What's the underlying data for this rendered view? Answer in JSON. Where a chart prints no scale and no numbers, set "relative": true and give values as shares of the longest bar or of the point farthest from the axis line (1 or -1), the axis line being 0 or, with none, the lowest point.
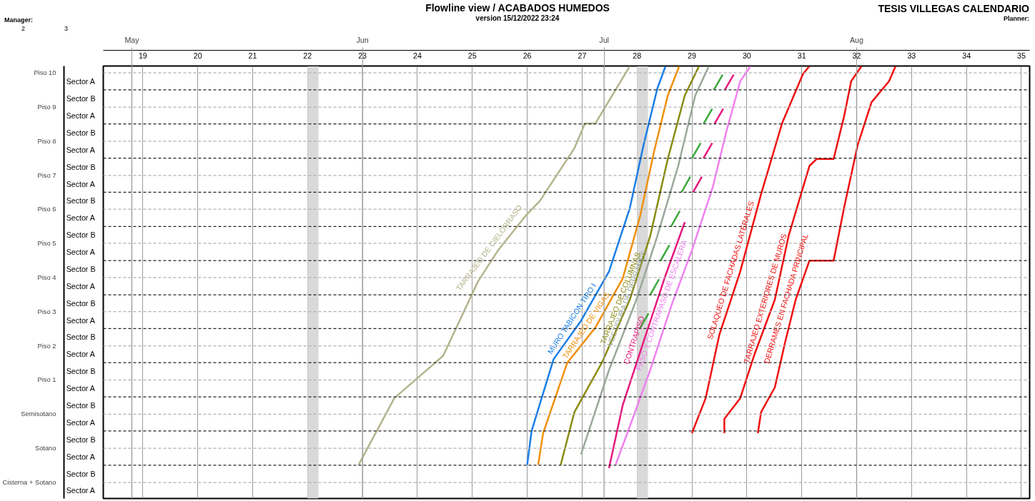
{
  "chart_data": {
    "type": "line",
    "title": "Flowline view / ACABADOS HUMEDOS",
    "subtitle": "version 15/12/2022 23:24",
    "relative": true,
    "xlim": [
      18.28,
      35.15
    ],
    "xticks": [
      19,
      20,
      21,
      22,
      23,
      24,
      25,
      26,
      27,
      28,
      29,
      30,
      31,
      32,
      33,
      34,
      35
    ],
    "y_categories": [
      "Sector A",
      "Sector B",
      "Sector A",
      "Sector B",
      "Sector A",
      "Sector B",
      "Sector A",
      "Sector B",
      "Sector A",
      "Sector B",
      "Sector A",
      "Sector B",
      "Sector A",
      "Sector B",
      "Sector A",
      "Sector B",
      "Sector A",
      "Sector B",
      "Sector A",
      "Sector B",
      "Sector A",
      "Sector B",
      "Sector A",
      "Sector B",
      "Sector A"
    ],
    "grid": "x",
    "legend": false,
    "line_style": "solid",
    "series": [
      {
        "name": "TARRAJEO DE CIELORRASO",
        "color": "#b4b48c",
        "x": [
          22.93,
          23.58,
          24.47,
          25.1,
          25.47,
          25.98,
          26.23,
          26.86,
          27.05,
          27.24,
          27.87
        ],
        "values": [
          0.078,
          0.232,
          0.33,
          0.501,
          0.574,
          0.655,
          0.688,
          0.81,
          0.867,
          0.867,
          1.0
        ]
      },
      {
        "name": "MURO TABICON TIPO I",
        "color": "#1a7ee6",
        "x": [
          26.0,
          26.08,
          26.48,
          26.98,
          27.49,
          27.87,
          28.12,
          28.37,
          28.52
        ],
        "values": [
          0.078,
          0.156,
          0.322,
          0.411,
          0.525,
          0.672,
          0.818,
          0.948,
          1.0
        ]
      },
      {
        "name": "TARRAJEO DE VIGAS",
        "color": "#f0900a",
        "x": [
          26.2,
          26.29,
          26.73,
          27.24,
          27.74,
          28.06,
          28.31,
          28.56,
          28.77
        ],
        "values": [
          0.078,
          0.151,
          0.314,
          0.395,
          0.509,
          0.655,
          0.802,
          0.932,
          1.0
        ]
      },
      {
        "name": "TARRAJEO DE COLUMNAS",
        "color": "#8a8a10",
        "x": [
          26.61,
          26.86,
          27.36,
          27.87,
          28.24,
          28.56,
          28.87,
          29.13
        ],
        "values": [
          0.078,
          0.2,
          0.314,
          0.46,
          0.607,
          0.785,
          0.932,
          1.0
        ]
      },
      {
        "name": "VESTIDURA DE DERRAMES",
        "color": "#9aa89a",
        "x": [
          26.98,
          27.49,
          27.99,
          28.37,
          28.75,
          29.06,
          29.31
        ],
        "values": [
          0.102,
          0.297,
          0.46,
          0.607,
          0.769,
          0.932,
          1.0
        ]
      },
      {
        "name": "CONTRAPISO",
        "color": "#e8187e",
        "x": [
          27.49,
          27.74,
          28.12,
          28.5,
          28.87
        ],
        "values": [
          0.07,
          0.216,
          0.363,
          0.509,
          0.639
        ]
      },
      {
        "name": "PASO Y CONTRAPASO DE ESCALERA",
        "color": "#f080f0",
        "x": [
          27.61,
          27.87,
          28.24,
          28.62,
          29.0,
          29.38,
          29.63,
          29.88,
          30.07
        ],
        "values": [
          0.078,
          0.167,
          0.297,
          0.444,
          0.574,
          0.72,
          0.85,
          0.965,
          1.0
        ]
      },
      {
        "name": "SOLAQUEO DE FACHADAS LATERALES",
        "color": "#f01010",
        "x": [
          29.0,
          29.25,
          29.5,
          29.88,
          30.26,
          30.64,
          31.02,
          31.14
        ],
        "values": [
          0.151,
          0.232,
          0.379,
          0.525,
          0.704,
          0.867,
          0.981,
          1.0
        ]
      },
      {
        "name": "TARRAJEO EXTERIORES DE MUROS",
        "color": "#f01010",
        "x": [
          29.59,
          29.59,
          29.88,
          30.13,
          30.51,
          30.76,
          31.14,
          31.27,
          31.58,
          31.77,
          31.9,
          32.09
        ],
        "values": [
          0.151,
          0.184,
          0.232,
          0.33,
          0.46,
          0.607,
          0.769,
          0.785,
          0.785,
          0.883,
          0.965,
          1.0
        ]
      },
      {
        "name": "DERRAMES EN FACHADA PRINCIPAL",
        "color": "#f01010",
        "x": [
          30.2,
          30.26,
          30.51,
          30.7,
          30.89,
          31.14,
          31.58,
          31.77,
          32.02,
          32.27,
          32.59,
          32.71
        ],
        "values": [
          0.151,
          0.2,
          0.257,
          0.363,
          0.46,
          0.55,
          0.55,
          0.672,
          0.818,
          0.916,
          0.965,
          1.0
        ]
      },
      {
        "color": "#3aa83a",
        "x": [
          28.05,
          28.21,
          28.225,
          28.24,
          28.4,
          28.415,
          28.43,
          28.59,
          28.605,
          28.62,
          28.78,
          28.795,
          28.81,
          28.97,
          28.985,
          29.0,
          29.16,
          29.185,
          29.21,
          29.37,
          29.385,
          29.4,
          29.56
        ],
        "values": [
          0.393,
          0.428,
          null,
          0.471,
          0.507,
          null,
          0.55,
          0.586,
          null,
          0.629,
          0.665,
          null,
          0.708,
          0.744,
          null,
          0.787,
          0.822,
          null,
          0.866,
          0.901,
          null,
          0.945,
          0.98
        ]
      },
      {
        "color": "#e8187e",
        "x": [
          29.02,
          29.18,
          29.195,
          29.21,
          29.37,
          29.39,
          29.41,
          29.57,
          29.585,
          29.6,
          29.76
        ],
        "values": [
          0.708,
          0.744,
          null,
          0.787,
          0.822,
          null,
          0.866,
          0.901,
          null,
          0.945,
          0.98
        ]
      }
    ],
    "ref_lines": [
      {
        "axis": "x",
        "value": 18.8,
        "label": "May",
        "line_style": "solid",
        "color": "#9a9a9a"
      },
      {
        "axis": "x",
        "value": 23.0,
        "label": "Jun",
        "line_style": "solid",
        "color": "#9a9a9a"
      },
      {
        "axis": "x",
        "value": 27.4,
        "label": "Jul",
        "line_style": "solid",
        "color": "#9a9a9a"
      },
      {
        "axis": "x",
        "value": 32.0,
        "label": "Aug",
        "line_style": "solid",
        "color": "#9a9a9a"
      },
      {
        "axis": "y",
        "value": 0.037,
        "line_style": "dashed",
        "color": "#b0b0b0"
      },
      {
        "axis": "y",
        "value": 0.077,
        "line_style": "dashed",
        "color": "#202020"
      },
      {
        "axis": "y",
        "value": 0.116,
        "line_style": "dashed",
        "color": "#b0b0b0"
      },
      {
        "axis": "y",
        "value": 0.156,
        "line_style": "dashed",
        "color": "#202020"
      },
      {
        "axis": "y",
        "value": 0.195,
        "line_style": "dashed",
        "color": "#b0b0b0"
      },
      {
        "axis": "y",
        "value": 0.235,
        "line_style": "dashed",
        "color": "#202020"
      },
      {
        "axis": "y",
        "value": 0.274,
        "line_style": "dashed",
        "color": "#b0b0b0"
      },
      {
        "axis": "y",
        "value": 0.314,
        "line_style": "dashed",
        "color": "#202020"
      },
      {
        "axis": "y",
        "value": 0.353,
        "line_style": "dashed",
        "color": "#b0b0b0"
      },
      {
        "axis": "y",
        "value": 0.393,
        "line_style": "dashed",
        "color": "#202020"
      },
      {
        "axis": "y",
        "value": 0.432,
        "line_style": "dashed",
        "color": "#b0b0b0"
      },
      {
        "axis": "y",
        "value": 0.471,
        "line_style": "dashed",
        "color": "#202020"
      },
      {
        "axis": "y",
        "value": 0.511,
        "line_style": "dashed",
        "color": "#b0b0b0"
      },
      {
        "axis": "y",
        "value": 0.55,
        "line_style": "dashed",
        "color": "#202020"
      },
      {
        "axis": "y",
        "value": 0.59,
        "line_style": "dashed",
        "color": "#b0b0b0"
      },
      {
        "axis": "y",
        "value": 0.629,
        "line_style": "dashed",
        "color": "#202020"
      },
      {
        "axis": "y",
        "value": 0.669,
        "line_style": "dashed",
        "color": "#b0b0b0"
      },
      {
        "axis": "y",
        "value": 0.708,
        "line_style": "dashed",
        "color": "#202020"
      },
      {
        "axis": "y",
        "value": 0.747,
        "line_style": "dashed",
        "color": "#b0b0b0"
      },
      {
        "axis": "y",
        "value": 0.787,
        "line_style": "dashed",
        "color": "#202020"
      },
      {
        "axis": "y",
        "value": 0.826,
        "line_style": "dashed",
        "color": "#b0b0b0"
      },
      {
        "axis": "y",
        "value": 0.866,
        "line_style": "dashed",
        "color": "#202020"
      },
      {
        "axis": "y",
        "value": 0.905,
        "line_style": "dashed",
        "color": "#b0b0b0"
      },
      {
        "axis": "y",
        "value": 0.945,
        "line_style": "dashed",
        "color": "#202020"
      },
      {
        "axis": "y",
        "value": 0.984,
        "line_style": "dashed",
        "color": "#b0b0b0"
      }
    ],
    "bands": [
      {
        "axis": "x",
        "from": 22.0,
        "to": 22.2,
        "color": "#d9d9d9"
      },
      {
        "axis": "x",
        "from": 28.0,
        "to": 28.2,
        "color": "#d9d9d9"
      }
    ],
    "annotations": [
      "Manager:",
      "TESIS VILLEGAS CALENDARIO",
      "Planner:",
      "2",
      "3",
      "Piso 10",
      "Piso 9",
      "Piso 8",
      "Piso 7",
      "Piso 6",
      "Piso 5",
      "Piso 4",
      "Piso 3",
      "Piso 2",
      "Piso 1",
      "Semisotano",
      "Sotano",
      "Cisterna + Sotano"
    ]
  }
}
